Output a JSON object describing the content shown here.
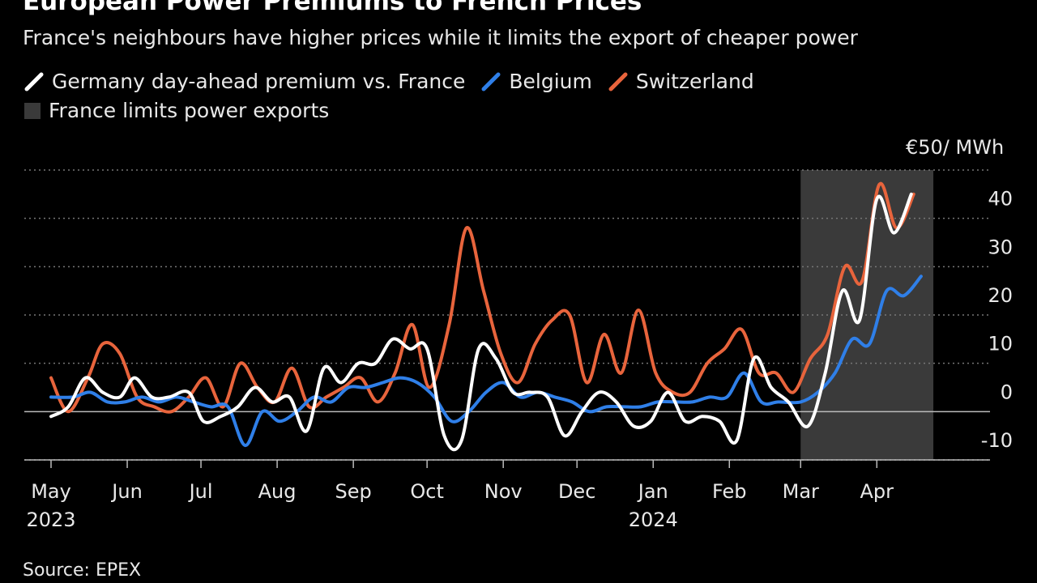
{
  "title": "European Power Premiums to French Prices",
  "subtitle": "France's neighbours have higher prices while it limits the export of cheaper power",
  "legend": {
    "germany": "Germany day-ahead premium vs. France",
    "belgium": "Belgium",
    "switzerland": "Switzerland",
    "shade": "France limits power exports"
  },
  "unit_label": "€50/ MWh",
  "source": "Source: EPEX",
  "colors": {
    "germany": "#ffffff",
    "belgium": "#2f7fe8",
    "switzerland": "#e8643c",
    "shade": "#3a3a3a",
    "grid": "#777777"
  },
  "chart_data": {
    "type": "line",
    "ylim": [
      -10,
      50
    ],
    "yticks": [
      -10,
      0,
      10,
      20,
      30,
      40
    ],
    "shaded_region": {
      "x": [
        "2024-03-01",
        "2024-04-24"
      ],
      "label": "France limits power exports"
    },
    "x_ticks": [
      {
        "x": "2023-05-01",
        "label": "May",
        "year": "2023"
      },
      {
        "x": "2023-06-01",
        "label": "Jun",
        "year": ""
      },
      {
        "x": "2023-07-01",
        "label": "Jul",
        "year": ""
      },
      {
        "x": "2023-08-01",
        "label": "Aug",
        "year": ""
      },
      {
        "x": "2023-09-01",
        "label": "Sep",
        "year": ""
      },
      {
        "x": "2023-10-01",
        "label": "Oct",
        "year": ""
      },
      {
        "x": "2023-11-01",
        "label": "Nov",
        "year": ""
      },
      {
        "x": "2023-12-01",
        "label": "Dec",
        "year": ""
      },
      {
        "x": "2024-01-01",
        "label": "Jan",
        "year": "2024"
      },
      {
        "x": "2024-02-01",
        "label": "Feb",
        "year": ""
      },
      {
        "x": "2024-03-01",
        "label": "Mar",
        "year": ""
      },
      {
        "x": "2024-04-01",
        "label": "Apr",
        "year": ""
      }
    ],
    "series": [
      {
        "name": "Switzerland",
        "color": "#e8643c",
        "points": [
          [
            "2023-05-01",
            7
          ],
          [
            "2023-05-08",
            0
          ],
          [
            "2023-05-16",
            7
          ],
          [
            "2023-05-22",
            14
          ],
          [
            "2023-05-29",
            12
          ],
          [
            "2023-06-05",
            3
          ],
          [
            "2023-06-12",
            1
          ],
          [
            "2023-06-19",
            0
          ],
          [
            "2023-06-26",
            3
          ],
          [
            "2023-07-03",
            7
          ],
          [
            "2023-07-10",
            1
          ],
          [
            "2023-07-17",
            10
          ],
          [
            "2023-07-24",
            5
          ],
          [
            "2023-07-31",
            2
          ],
          [
            "2023-08-07",
            9
          ],
          [
            "2023-08-14",
            1
          ],
          [
            "2023-08-21",
            3
          ],
          [
            "2023-08-28",
            5
          ],
          [
            "2023-09-04",
            7
          ],
          [
            "2023-09-11",
            2
          ],
          [
            "2023-09-18",
            8
          ],
          [
            "2023-09-25",
            18
          ],
          [
            "2023-10-02",
            5
          ],
          [
            "2023-10-10",
            18
          ],
          [
            "2023-10-17",
            38
          ],
          [
            "2023-10-24",
            25
          ],
          [
            "2023-10-31",
            12
          ],
          [
            "2023-11-07",
            6
          ],
          [
            "2023-11-14",
            14
          ],
          [
            "2023-11-21",
            19
          ],
          [
            "2023-11-28",
            20
          ],
          [
            "2023-12-05",
            6
          ],
          [
            "2023-12-12",
            16
          ],
          [
            "2023-12-19",
            8
          ],
          [
            "2023-12-26",
            21
          ],
          [
            "2024-01-02",
            8
          ],
          [
            "2024-01-09",
            4
          ],
          [
            "2024-01-16",
            4
          ],
          [
            "2024-01-23",
            10
          ],
          [
            "2024-01-30",
            13
          ],
          [
            "2024-02-06",
            17
          ],
          [
            "2024-02-13",
            8
          ],
          [
            "2024-02-20",
            8
          ],
          [
            "2024-02-27",
            4
          ],
          [
            "2024-03-05",
            11
          ],
          [
            "2024-03-12",
            16
          ],
          [
            "2024-03-19",
            30
          ],
          [
            "2024-03-26",
            27
          ],
          [
            "2024-04-02",
            47
          ],
          [
            "2024-04-09",
            38
          ],
          [
            "2024-04-16",
            45
          ]
        ]
      },
      {
        "name": "Belgium",
        "color": "#2f7fe8",
        "points": [
          [
            "2023-05-01",
            3
          ],
          [
            "2023-05-10",
            3
          ],
          [
            "2023-05-17",
            4
          ],
          [
            "2023-05-24",
            2
          ],
          [
            "2023-05-31",
            2
          ],
          [
            "2023-06-07",
            3
          ],
          [
            "2023-06-14",
            2
          ],
          [
            "2023-06-21",
            3
          ],
          [
            "2023-06-28",
            2
          ],
          [
            "2023-07-05",
            1
          ],
          [
            "2023-07-12",
            1
          ],
          [
            "2023-07-19",
            -7
          ],
          [
            "2023-07-26",
            0
          ],
          [
            "2023-08-02",
            -2
          ],
          [
            "2023-08-09",
            0
          ],
          [
            "2023-08-16",
            3
          ],
          [
            "2023-08-23",
            2
          ],
          [
            "2023-08-30",
            5
          ],
          [
            "2023-09-06",
            5
          ],
          [
            "2023-09-13",
            6
          ],
          [
            "2023-09-20",
            7
          ],
          [
            "2023-09-27",
            6
          ],
          [
            "2023-10-04",
            3
          ],
          [
            "2023-10-11",
            -2
          ],
          [
            "2023-10-18",
            0
          ],
          [
            "2023-10-25",
            4
          ],
          [
            "2023-11-01",
            6
          ],
          [
            "2023-11-08",
            3
          ],
          [
            "2023-11-15",
            4
          ],
          [
            "2023-11-22",
            3
          ],
          [
            "2023-11-29",
            2
          ],
          [
            "2023-12-06",
            0
          ],
          [
            "2023-12-13",
            1
          ],
          [
            "2023-12-20",
            1
          ],
          [
            "2023-12-27",
            1
          ],
          [
            "2024-01-03",
            2
          ],
          [
            "2024-01-10",
            2
          ],
          [
            "2024-01-17",
            2
          ],
          [
            "2024-01-24",
            3
          ],
          [
            "2024-01-31",
            3
          ],
          [
            "2024-02-07",
            8
          ],
          [
            "2024-02-14",
            2
          ],
          [
            "2024-02-21",
            2
          ],
          [
            "2024-03-01",
            2
          ],
          [
            "2024-03-08",
            4
          ],
          [
            "2024-03-15",
            8
          ],
          [
            "2024-03-22",
            15
          ],
          [
            "2024-03-29",
            14
          ],
          [
            "2024-04-05",
            25
          ],
          [
            "2024-04-12",
            24
          ],
          [
            "2024-04-19",
            28
          ]
        ]
      },
      {
        "name": "Germany day-ahead premium vs. France",
        "color": "#ffffff",
        "points": [
          [
            "2023-05-01",
            -1
          ],
          [
            "2023-05-08",
            1
          ],
          [
            "2023-05-15",
            7
          ],
          [
            "2023-05-22",
            4
          ],
          [
            "2023-05-29",
            3
          ],
          [
            "2023-06-04",
            7
          ],
          [
            "2023-06-11",
            3
          ],
          [
            "2023-06-18",
            3
          ],
          [
            "2023-06-26",
            4
          ],
          [
            "2023-07-02",
            -2
          ],
          [
            "2023-07-09",
            -1
          ],
          [
            "2023-07-16",
            1
          ],
          [
            "2023-07-23",
            5
          ],
          [
            "2023-07-30",
            2
          ],
          [
            "2023-08-06",
            3
          ],
          [
            "2023-08-13",
            -4
          ],
          [
            "2023-08-20",
            9
          ],
          [
            "2023-08-27",
            6
          ],
          [
            "2023-09-03",
            10
          ],
          [
            "2023-09-10",
            10
          ],
          [
            "2023-09-17",
            15
          ],
          [
            "2023-09-24",
            13
          ],
          [
            "2023-10-01",
            13
          ],
          [
            "2023-10-08",
            -5
          ],
          [
            "2023-10-15",
            -6
          ],
          [
            "2023-10-22",
            13
          ],
          [
            "2023-10-29",
            11
          ],
          [
            "2023-11-05",
            4
          ],
          [
            "2023-11-12",
            4
          ],
          [
            "2023-11-19",
            3
          ],
          [
            "2023-11-26",
            -5
          ],
          [
            "2023-12-03",
            0
          ],
          [
            "2023-12-10",
            4
          ],
          [
            "2023-12-17",
            2
          ],
          [
            "2023-12-24",
            -3
          ],
          [
            "2023-12-31",
            -2
          ],
          [
            "2024-01-07",
            4
          ],
          [
            "2024-01-14",
            -2
          ],
          [
            "2024-01-21",
            -1
          ],
          [
            "2024-01-28",
            -2
          ],
          [
            "2024-02-04",
            -6
          ],
          [
            "2024-02-11",
            11
          ],
          [
            "2024-02-18",
            5
          ],
          [
            "2024-02-25",
            2
          ],
          [
            "2024-03-04",
            -3
          ],
          [
            "2024-03-11",
            8
          ],
          [
            "2024-03-18",
            25
          ],
          [
            "2024-03-25",
            19
          ],
          [
            "2024-04-01",
            44
          ],
          [
            "2024-04-08",
            37
          ],
          [
            "2024-04-15",
            45
          ]
        ]
      }
    ]
  }
}
